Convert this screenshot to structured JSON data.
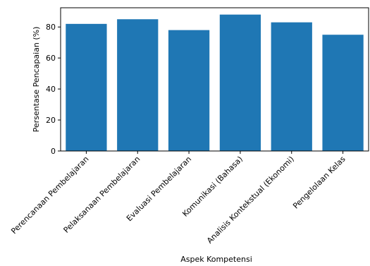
{
  "chart_data": {
    "type": "bar",
    "title": "",
    "xlabel": "Aspek Kompetensi",
    "ylabel": "Persentase Pencapaian (%)",
    "ylim": [
      0,
      92.4
    ],
    "yticks": [
      0,
      20,
      40,
      60,
      80
    ],
    "categories": [
      "Perencanaan Pembelajaran",
      "Pelaksanaan Pembelajaran",
      "Evaluasi Pembelajaran",
      "Komunikasi (Bahasa)",
      "Analisis Kontekstual (Ekonomi)",
      "Pengelolaan Kelas"
    ],
    "values": [
      82,
      85,
      78,
      88,
      83,
      75
    ],
    "bar_color": "#1f77b4",
    "grid": false,
    "legend": "none"
  }
}
